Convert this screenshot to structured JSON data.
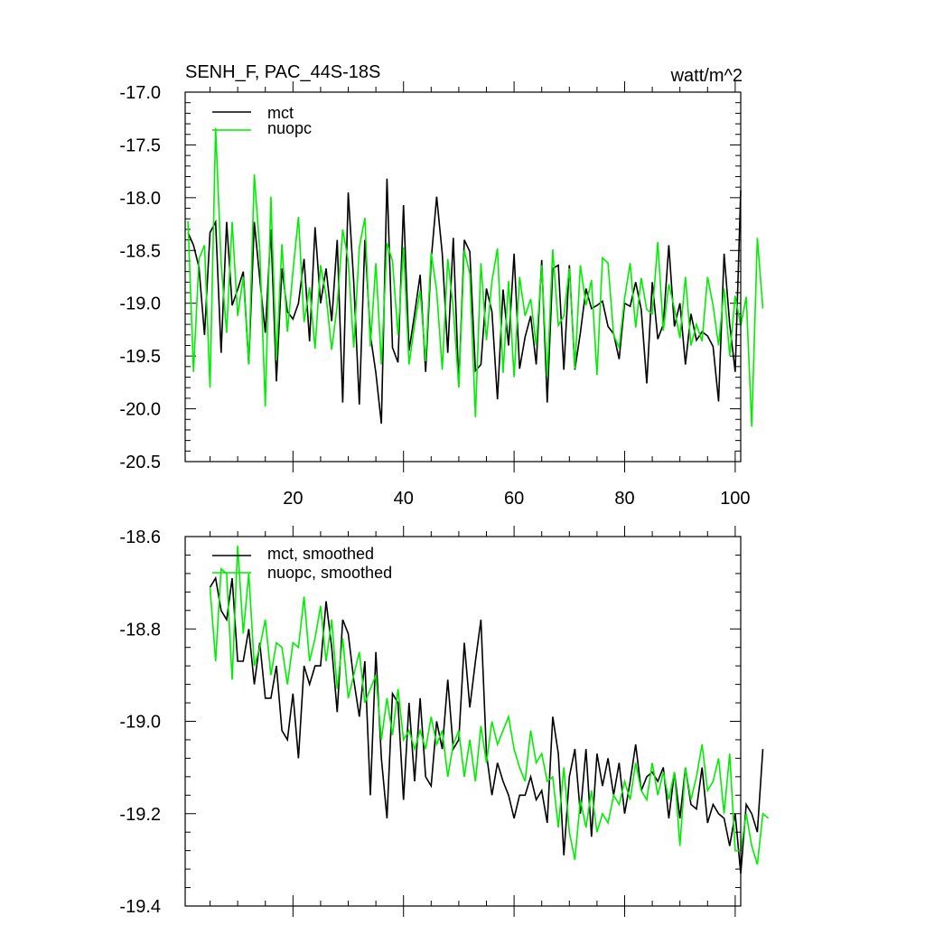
{
  "chart_data": [
    {
      "type": "line",
      "title": "SENH_F, PAC_44S-18S",
      "units": "watt/m^2",
      "xlabel": "",
      "ylabel": "",
      "xlim": [
        0.5,
        101
      ],
      "ylim": [
        -20.5,
        -17.0
      ],
      "x_ticks": [
        20,
        40,
        60,
        80,
        100
      ],
      "x_tick_labels": [
        "20",
        "40",
        "60",
        "80",
        "100"
      ],
      "y_ticks": [
        -17.0,
        -17.5,
        -18.0,
        -18.5,
        -19.0,
        -19.5,
        -20.0,
        -20.5
      ],
      "y_tick_labels": [
        "-17.0",
        "-17.5",
        "-18.0",
        "-18.5",
        "-19.0",
        "-19.5",
        "-20.0",
        "-20.5"
      ],
      "legend_position": "top-left",
      "grid": false,
      "x_start": 1,
      "series": [
        {
          "name": "mct",
          "color": "#000000",
          "values": [
            -18.33,
            -18.45,
            -18.66,
            -19.3,
            -18.33,
            -18.23,
            -19.47,
            -18.23,
            -19.02,
            -18.87,
            -18.7,
            -19.58,
            -18.23,
            -18.77,
            -19.28,
            -18.3,
            -19.74,
            -18.67,
            -19.08,
            -19.15,
            -19.0,
            -18.58,
            -19.36,
            -18.28,
            -19.0,
            -18.67,
            -19.17,
            -18.4,
            -19.94,
            -17.95,
            -18.8,
            -19.96,
            -18.4,
            -19.3,
            -19.66,
            -20.14,
            -17.82,
            -19.42,
            -19.56,
            -18.07,
            -19.45,
            -19.1,
            -18.73,
            -19.65,
            -18.59,
            -17.99,
            -18.53,
            -19.47,
            -18.38,
            -19.78,
            -18.4,
            -18.51,
            -19.64,
            -19.58,
            -18.86,
            -19.08,
            -19.91,
            -18.87,
            -19.4,
            -18.53,
            -19.62,
            -19.32,
            -19.12,
            -19.58,
            -18.59,
            -19.94,
            -18.67,
            -18.64,
            -19.63,
            -18.64,
            -19.63,
            -19.28,
            -18.86,
            -19.05,
            -19.02,
            -18.98,
            -19.22,
            -19.29,
            -19.53,
            -19.0,
            -19.03,
            -18.8,
            -19.06,
            -19.76,
            -18.8,
            -19.34,
            -19.2,
            -18.45,
            -19.22,
            -19.0,
            -19.58,
            -19.1,
            -19.35,
            -19.27,
            -19.31,
            -19.41,
            -19.93,
            -18.53,
            -19.2,
            -19.65,
            -17.93
          ]
        },
        {
          "name": "nuopc",
          "color": "#00ee00",
          "values": [
            -18.22,
            -19.65,
            -18.58,
            -18.45,
            -19.8,
            -17.34,
            -18.62,
            -19.28,
            -18.23,
            -19.12,
            -18.75,
            -19.58,
            -17.78,
            -18.5,
            -19.98,
            -17.99,
            -19.54,
            -18.44,
            -19.27,
            -18.7,
            -18.18,
            -19.18,
            -18.85,
            -19.43,
            -18.64,
            -18.93,
            -19.44,
            -19.02,
            -18.3,
            -18.6,
            -19.42,
            -18.47,
            -18.19,
            -19.41,
            -18.62,
            -19.58,
            -18.43,
            -18.6,
            -19.3,
            -18.47,
            -19.58,
            -19.2,
            -18.88,
            -19.55,
            -18.52,
            -18.88,
            -19.63,
            -18.58,
            -19.05,
            -19.8,
            -18.5,
            -18.72,
            -20.08,
            -18.62,
            -19.35,
            -18.79,
            -18.48,
            -19.66,
            -18.79,
            -19.7,
            -18.75,
            -19.12,
            -18.96,
            -19.4,
            -18.64,
            -19.7,
            -18.49,
            -19.21,
            -19.12,
            -18.67,
            -19.62,
            -18.64,
            -19.02,
            -18.78,
            -19.68,
            -18.57,
            -18.62,
            -19.3,
            -19.42,
            -18.95,
            -18.62,
            -19.23,
            -18.76,
            -19.06,
            -19.1,
            -18.42,
            -19.26,
            -18.82,
            -19.05,
            -19.33,
            -18.75,
            -19.4,
            -19.2,
            -19.36,
            -18.75,
            -19.02,
            -19.4,
            -18.86,
            -19.5,
            -18.93,
            -19.21,
            -18.94,
            -20.17,
            -18.38,
            -19.05
          ]
        }
      ]
    },
    {
      "type": "line",
      "title": "",
      "xlabel": "",
      "ylabel": "",
      "xlim": [
        0.5,
        101
      ],
      "ylim": [
        -19.4,
        -18.6
      ],
      "x_ticks": [
        20,
        40,
        60,
        80,
        100
      ],
      "x_tick_labels": [],
      "y_ticks": [
        -18.6,
        -18.8,
        -19.0,
        -19.2,
        -19.4
      ],
      "y_tick_labels": [
        "-18.6",
        "-18.8",
        "-19.0",
        "-19.2",
        "-19.4"
      ],
      "legend_position": "top-left",
      "grid": false,
      "x_start": 5,
      "series": [
        {
          "name": "mct, smoothed",
          "color": "#000000",
          "values": [
            -18.71,
            -18.69,
            -18.76,
            -18.78,
            -18.69,
            -18.87,
            -18.87,
            -18.8,
            -18.92,
            -18.83,
            -18.95,
            -18.95,
            -18.88,
            -19.02,
            -19.04,
            -18.94,
            -19.08,
            -18.88,
            -18.92,
            -18.88,
            -18.88,
            -18.74,
            -18.84,
            -18.98,
            -18.78,
            -18.81,
            -18.91,
            -18.99,
            -18.87,
            -19.16,
            -18.85,
            -19.08,
            -19.21,
            -18.94,
            -18.96,
            -19.17,
            -18.96,
            -19.13,
            -18.95,
            -19.12,
            -19.14,
            -19.0,
            -19.06,
            -18.91,
            -19.06,
            -19.04,
            -18.83,
            -18.97,
            -18.87,
            -18.78,
            -19.07,
            -19.16,
            -19.09,
            -19.13,
            -19.16,
            -19.21,
            -19.16,
            -19.16,
            -19.12,
            -19.17,
            -19.15,
            -19.22,
            -18.99,
            -19.07,
            -19.29,
            -19.12,
            -19.06,
            -19.2,
            -19.06,
            -19.25,
            -19.07,
            -19.14,
            -19.08,
            -19.16,
            -19.09,
            -19.2,
            -19.13,
            -19.05,
            -19.15,
            -19.12,
            -19.11,
            -19.13,
            -19.1,
            -19.21,
            -19.11,
            -19.21,
            -19.1,
            -19.18,
            -19.19,
            -19.1,
            -19.22,
            -19.18,
            -19.2,
            -19.21,
            -19.27,
            -19.2,
            -19.33,
            -19.18,
            -19.2,
            -19.24,
            -19.06
          ]
        },
        {
          "name": "nuopc, smoothed",
          "color": "#00ee00",
          "values": [
            -18.71,
            -18.87,
            -18.67,
            -18.68,
            -18.91,
            -18.62,
            -18.81,
            -18.68,
            -18.88,
            -18.84,
            -18.78,
            -18.9,
            -18.83,
            -18.84,
            -18.92,
            -18.83,
            -18.84,
            -18.73,
            -18.87,
            -18.82,
            -18.75,
            -18.87,
            -18.78,
            -18.93,
            -18.82,
            -18.95,
            -18.9,
            -18.85,
            -18.96,
            -18.93,
            -18.9,
            -19.04,
            -18.95,
            -19.03,
            -18.93,
            -19.04,
            -19.02,
            -19.06,
            -19.02,
            -19.06,
            -18.99,
            -19.05,
            -19.02,
            -19.12,
            -19.05,
            -19.02,
            -19.12,
            -19.04,
            -19.13,
            -19.01,
            -19.09,
            -19.0,
            -19.05,
            -19.02,
            -18.99,
            -19.06,
            -19.1,
            -19.13,
            -19.02,
            -19.09,
            -19.07,
            -19.13,
            -19.12,
            -19.23,
            -19.1,
            -19.24,
            -19.3,
            -19.17,
            -19.23,
            -19.15,
            -19.24,
            -19.2,
            -19.22,
            -19.16,
            -19.18,
            -19.13,
            -19.17,
            -19.09,
            -19.15,
            -19.17,
            -19.09,
            -19.16,
            -19.11,
            -19.17,
            -19.11,
            -19.27,
            -19.1,
            -19.17,
            -19.12,
            -19.05,
            -19.15,
            -19.13,
            -19.08,
            -19.2,
            -19.07,
            -19.28,
            -19.28,
            -19.2,
            -19.27,
            -19.31,
            -19.2,
            -19.21
          ]
        }
      ]
    }
  ]
}
